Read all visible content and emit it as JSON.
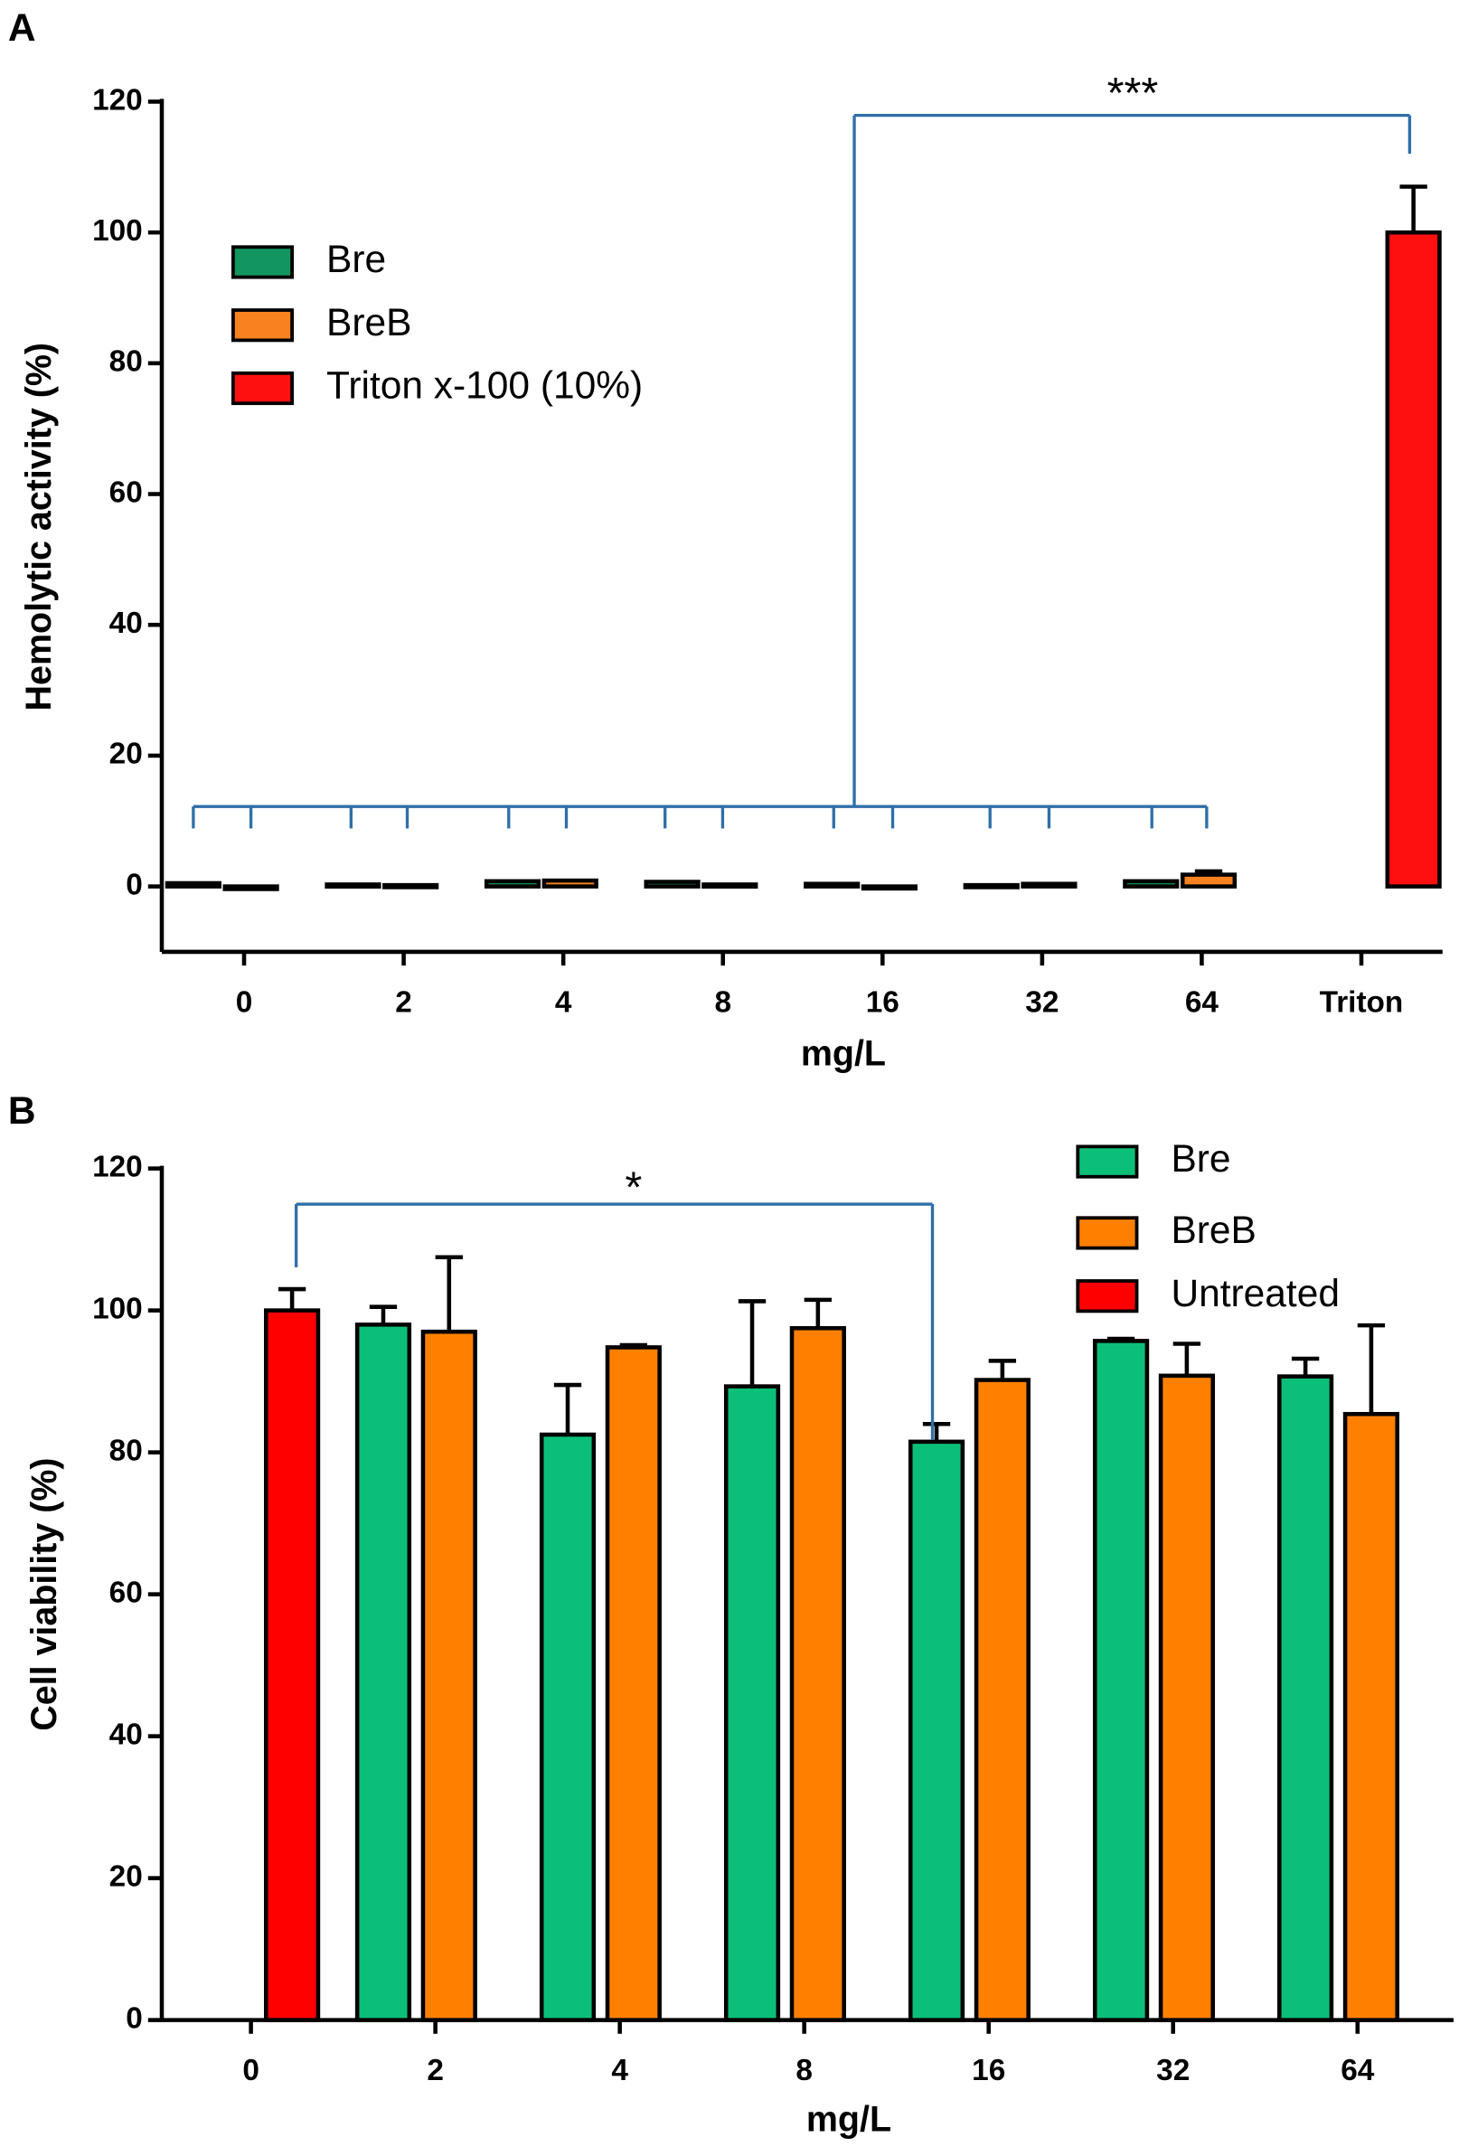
{
  "chart_data": [
    {
      "panel": "A",
      "type": "bar",
      "ylabel": "Hemolytic activity (%)",
      "xlabel": "mg/L",
      "categories": [
        "0",
        "2",
        "4",
        "8",
        "16",
        "32",
        "64",
        "Triton"
      ],
      "series": [
        {
          "name": "Bre",
          "color": "#13955f",
          "values": [
            0.5,
            0.3,
            0.8,
            0.7,
            0.4,
            0.2,
            0.8,
            null
          ],
          "errors": [
            null,
            null,
            null,
            null,
            null,
            null,
            null,
            null
          ]
        },
        {
          "name": "BreB",
          "color": "#f7821f",
          "values": [
            -0.4,
            0.2,
            0.9,
            0.3,
            -0.2,
            0.4,
            1.8,
            null
          ],
          "errors": [
            null,
            null,
            null,
            null,
            null,
            null,
            0.5,
            null
          ]
        },
        {
          "name": "Triton x-100 (10%)",
          "color": "#ff1010",
          "values": [
            null,
            null,
            null,
            null,
            null,
            null,
            null,
            100
          ],
          "errors": [
            null,
            null,
            null,
            null,
            null,
            null,
            null,
            7
          ]
        }
      ],
      "ylim": [
        -10,
        120
      ],
      "yticks": [
        0,
        20,
        40,
        60,
        80,
        100,
        120
      ],
      "annotation": "***",
      "legend": "upper left"
    },
    {
      "panel": "B",
      "type": "bar",
      "ylabel": "Cell viability (%)",
      "xlabel": "mg/L",
      "categories": [
        "0",
        "2",
        "4",
        "8",
        "16",
        "32",
        "64"
      ],
      "series": [
        {
          "name": "Bre",
          "color": "#0cbf78",
          "values": [
            null,
            98,
            82.5,
            89.3,
            81.5,
            95.7,
            90.7
          ],
          "errors": [
            null,
            2.5,
            7,
            12,
            2.5,
            0.3,
            2.5
          ]
        },
        {
          "name": "BreB",
          "color": "#ff8000",
          "values": [
            null,
            97,
            94.8,
            97.5,
            90.2,
            90.8,
            85.4
          ],
          "errors": [
            null,
            10.5,
            0.3,
            4,
            2.7,
            4.5,
            12.5
          ]
        },
        {
          "name": "Untreated",
          "color": "#ff0000",
          "values": [
            100,
            null,
            null,
            null,
            null,
            null,
            null
          ],
          "errors": [
            3,
            null,
            null,
            null,
            null,
            null,
            null
          ]
        }
      ],
      "ylim": [
        0,
        120
      ],
      "yticks": [
        0,
        20,
        40,
        60,
        80,
        100,
        120
      ],
      "annotation": "*",
      "legend": "upper right"
    }
  ]
}
